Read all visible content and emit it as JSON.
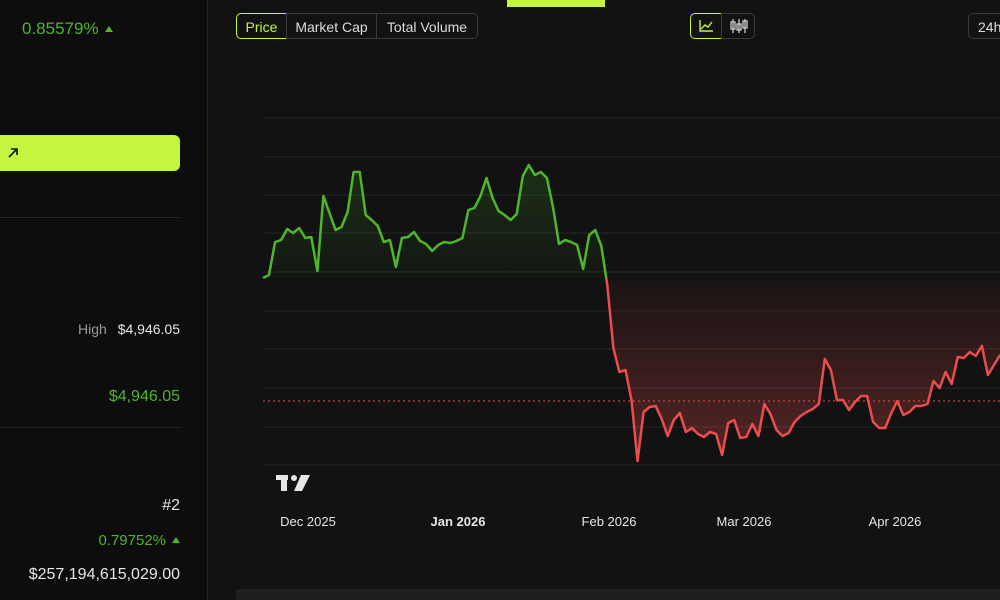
{
  "stats": {
    "change_top": "0.85579%",
    "high_label": "High",
    "high_value": "$4,946.05",
    "ath_value": "$4,946.05",
    "rank": "#2",
    "change_bottom": "0.79752%",
    "market_cap": "$257,194,615,029.00"
  },
  "tabs": [
    "Price",
    "Market Cap",
    "Total Volume"
  ],
  "range_button": "24h",
  "chart_data": {
    "type": "line",
    "xtick_labels": [
      "Dec 2025",
      "Jan 2026",
      "Feb 2026",
      "Mar 2026",
      "Apr 2026"
    ],
    "series": [
      {
        "values": [
          202,
          205,
          238,
          240,
          251,
          247,
          252,
          242,
          243,
          209,
          284,
          267,
          250,
          253,
          268,
          308,
          308,
          265,
          260,
          254,
          238,
          240,
          213,
          242,
          243,
          248,
          239,
          236,
          229,
          235,
          238,
          237,
          239,
          242,
          270,
          272,
          284,
          302,
          282,
          269,
          265,
          260,
          266,
          304,
          315,
          305,
          308,
          302,
          273,
          236,
          240,
          238,
          235,
          211,
          245,
          250,
          234,
          195,
          132,
          108,
          110,
          80,
          19,
          68,
          73,
          74,
          61,
          44,
          60,
          67,
          48,
          52,
          46,
          43,
          48,
          46,
          25,
          57,
          60,
          42,
          43,
          56,
          44,
          76,
          66,
          50,
          44,
          47,
          58,
          64,
          68,
          71,
          76,
          121,
          110,
          80,
          80,
          70,
          78,
          84,
          84,
          58,
          52,
          52,
          67,
          79,
          65,
          68,
          74,
          74,
          76,
          99,
          92,
          108,
          96,
          123,
          122,
          128,
          124,
          134,
          105,
          115,
          125
        ]
      }
    ],
    "ylim": [
      0,
      400
    ],
    "up_color": "#4fb52d",
    "down_color": "#ea4d4d"
  }
}
